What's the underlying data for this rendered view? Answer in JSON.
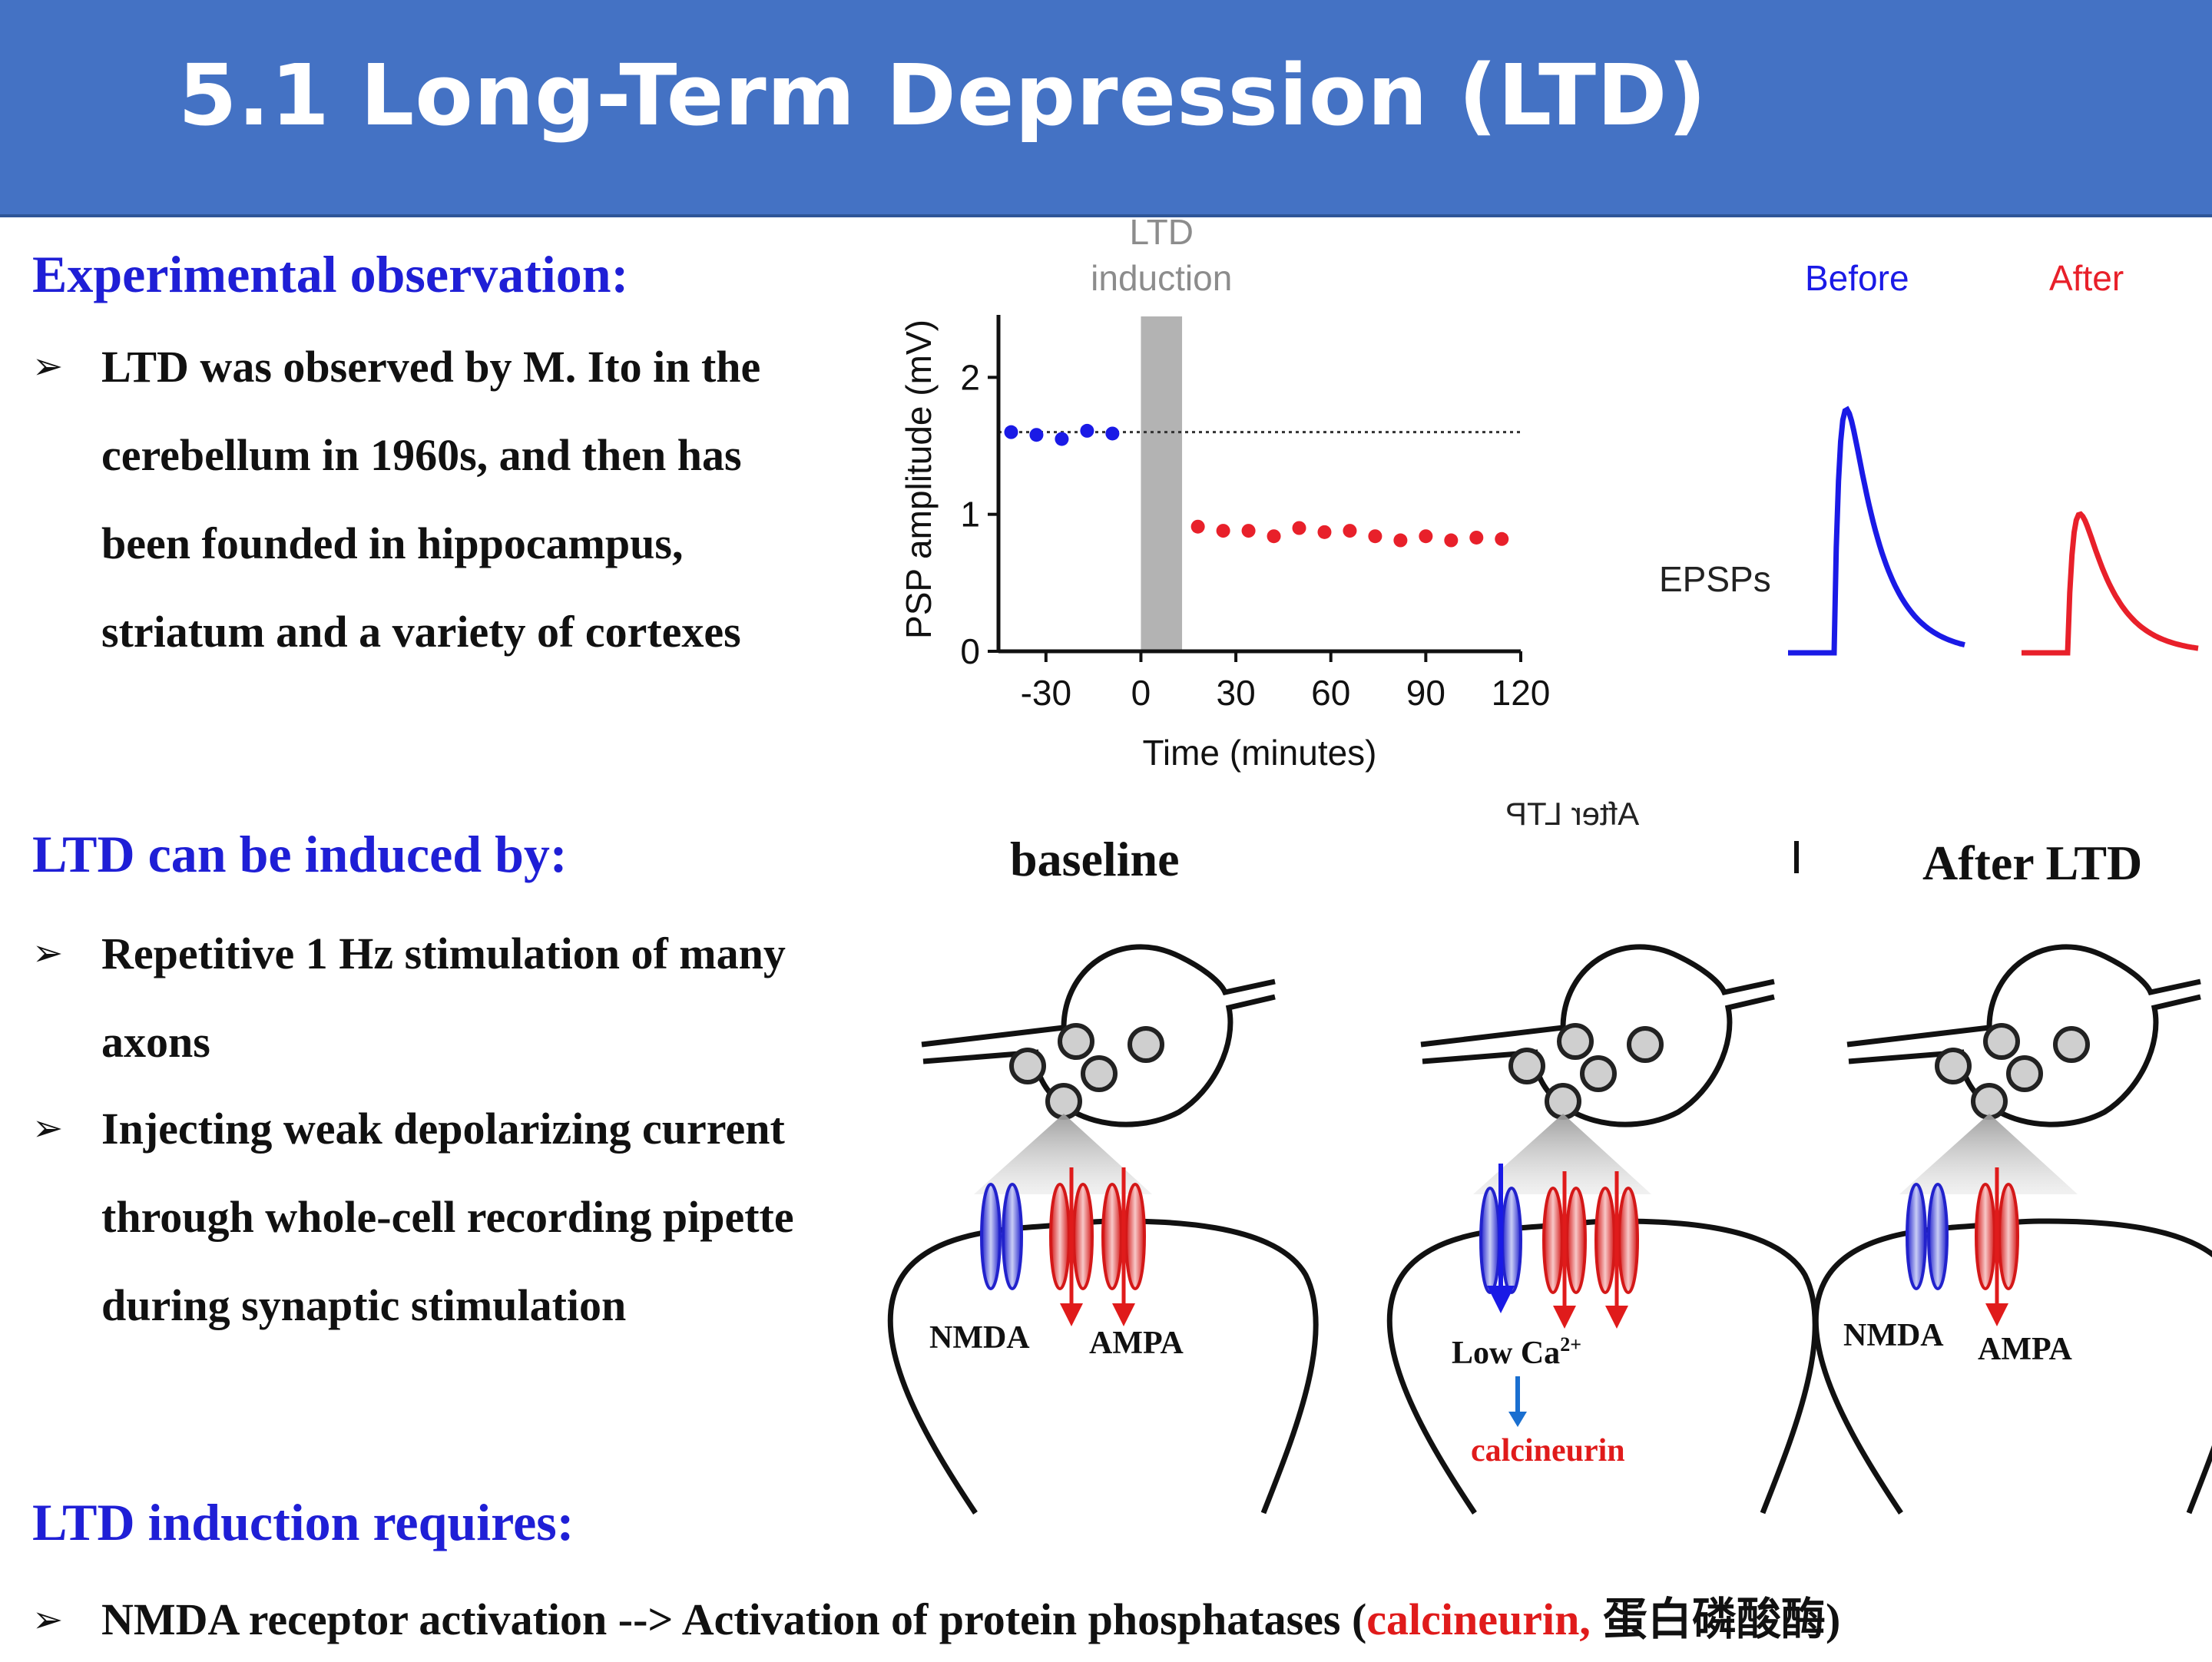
{
  "header": {
    "title": "5.1 Long-Term Depression (LTD)"
  },
  "section1": {
    "heading": "Experimental observation:",
    "bullet_lines": [
      "LTD was observed by M. Ito in the",
      "cerebellum in 1960s, and then has",
      "been founded in hippocampus,",
      "striatum and a variety of cortexes"
    ]
  },
  "section2": {
    "heading": "LTD can be induced by:",
    "bullet1_lines": [
      "Repetitive 1 Hz stimulation of many",
      "axons"
    ],
    "bullet2_lines": [
      "Injecting weak depolarizing current",
      "through whole-cell recording pipette",
      "during synaptic stimulation"
    ]
  },
  "section3": {
    "heading": "LTD induction requires:",
    "bullet_prefix": "NMDA receptor activation --> Activation of protein phosphatases (",
    "bullet_highlight": "calcineurin,",
    "bullet_chinese": " 蛋白磷酸酶",
    "bullet_suffix": ")"
  },
  "colors": {
    "header_bg": "#4472c4",
    "heading": "#1f1fd6",
    "before": "#1a1ae6",
    "after": "#e8202a",
    "induction_bar": "#b3b3b3"
  },
  "chart_data": {
    "type": "scatter",
    "title": "",
    "xlabel": "Time (minutes)",
    "ylabel": "PSP amplitude (mV)",
    "xlim": [
      -45,
      120
    ],
    "ylim": [
      0,
      2.4
    ],
    "xticks": [
      -30,
      0,
      30,
      60,
      90,
      120
    ],
    "yticks": [
      0,
      1,
      2
    ],
    "baseline": 1.6,
    "induction_window": [
      0,
      13
    ],
    "annotation": "LTD\ninduction",
    "series": [
      {
        "name": "Before",
        "color": "#1a1ae6",
        "x": [
          -41,
          -33,
          -25,
          -17,
          -9
        ],
        "y": [
          1.6,
          1.58,
          1.55,
          1.61,
          1.59
        ]
      },
      {
        "name": "After",
        "color": "#e8202a",
        "x": [
          18,
          26,
          34,
          42,
          50,
          58,
          66,
          74,
          82,
          90,
          98,
          106,
          114
        ],
        "y": [
          0.91,
          0.88,
          0.88,
          0.84,
          0.9,
          0.87,
          0.88,
          0.84,
          0.81,
          0.84,
          0.81,
          0.83,
          0.82
        ]
      }
    ]
  },
  "epsp": {
    "label": "EPSPs",
    "before_label": "Before",
    "after_label": "After",
    "before_peak": 1.0,
    "after_peak": 0.57
  },
  "diagram": {
    "panel_titles": [
      "baseline",
      "After LTD"
    ],
    "mirrored_label": "After LTP",
    "receptor_labels": {
      "nmda": "NMDA",
      "ampa": "AMPA"
    },
    "middle_ca_label": "Low Ca",
    "middle_ca_sup": "2+",
    "middle_enzyme": "calcineurin"
  }
}
